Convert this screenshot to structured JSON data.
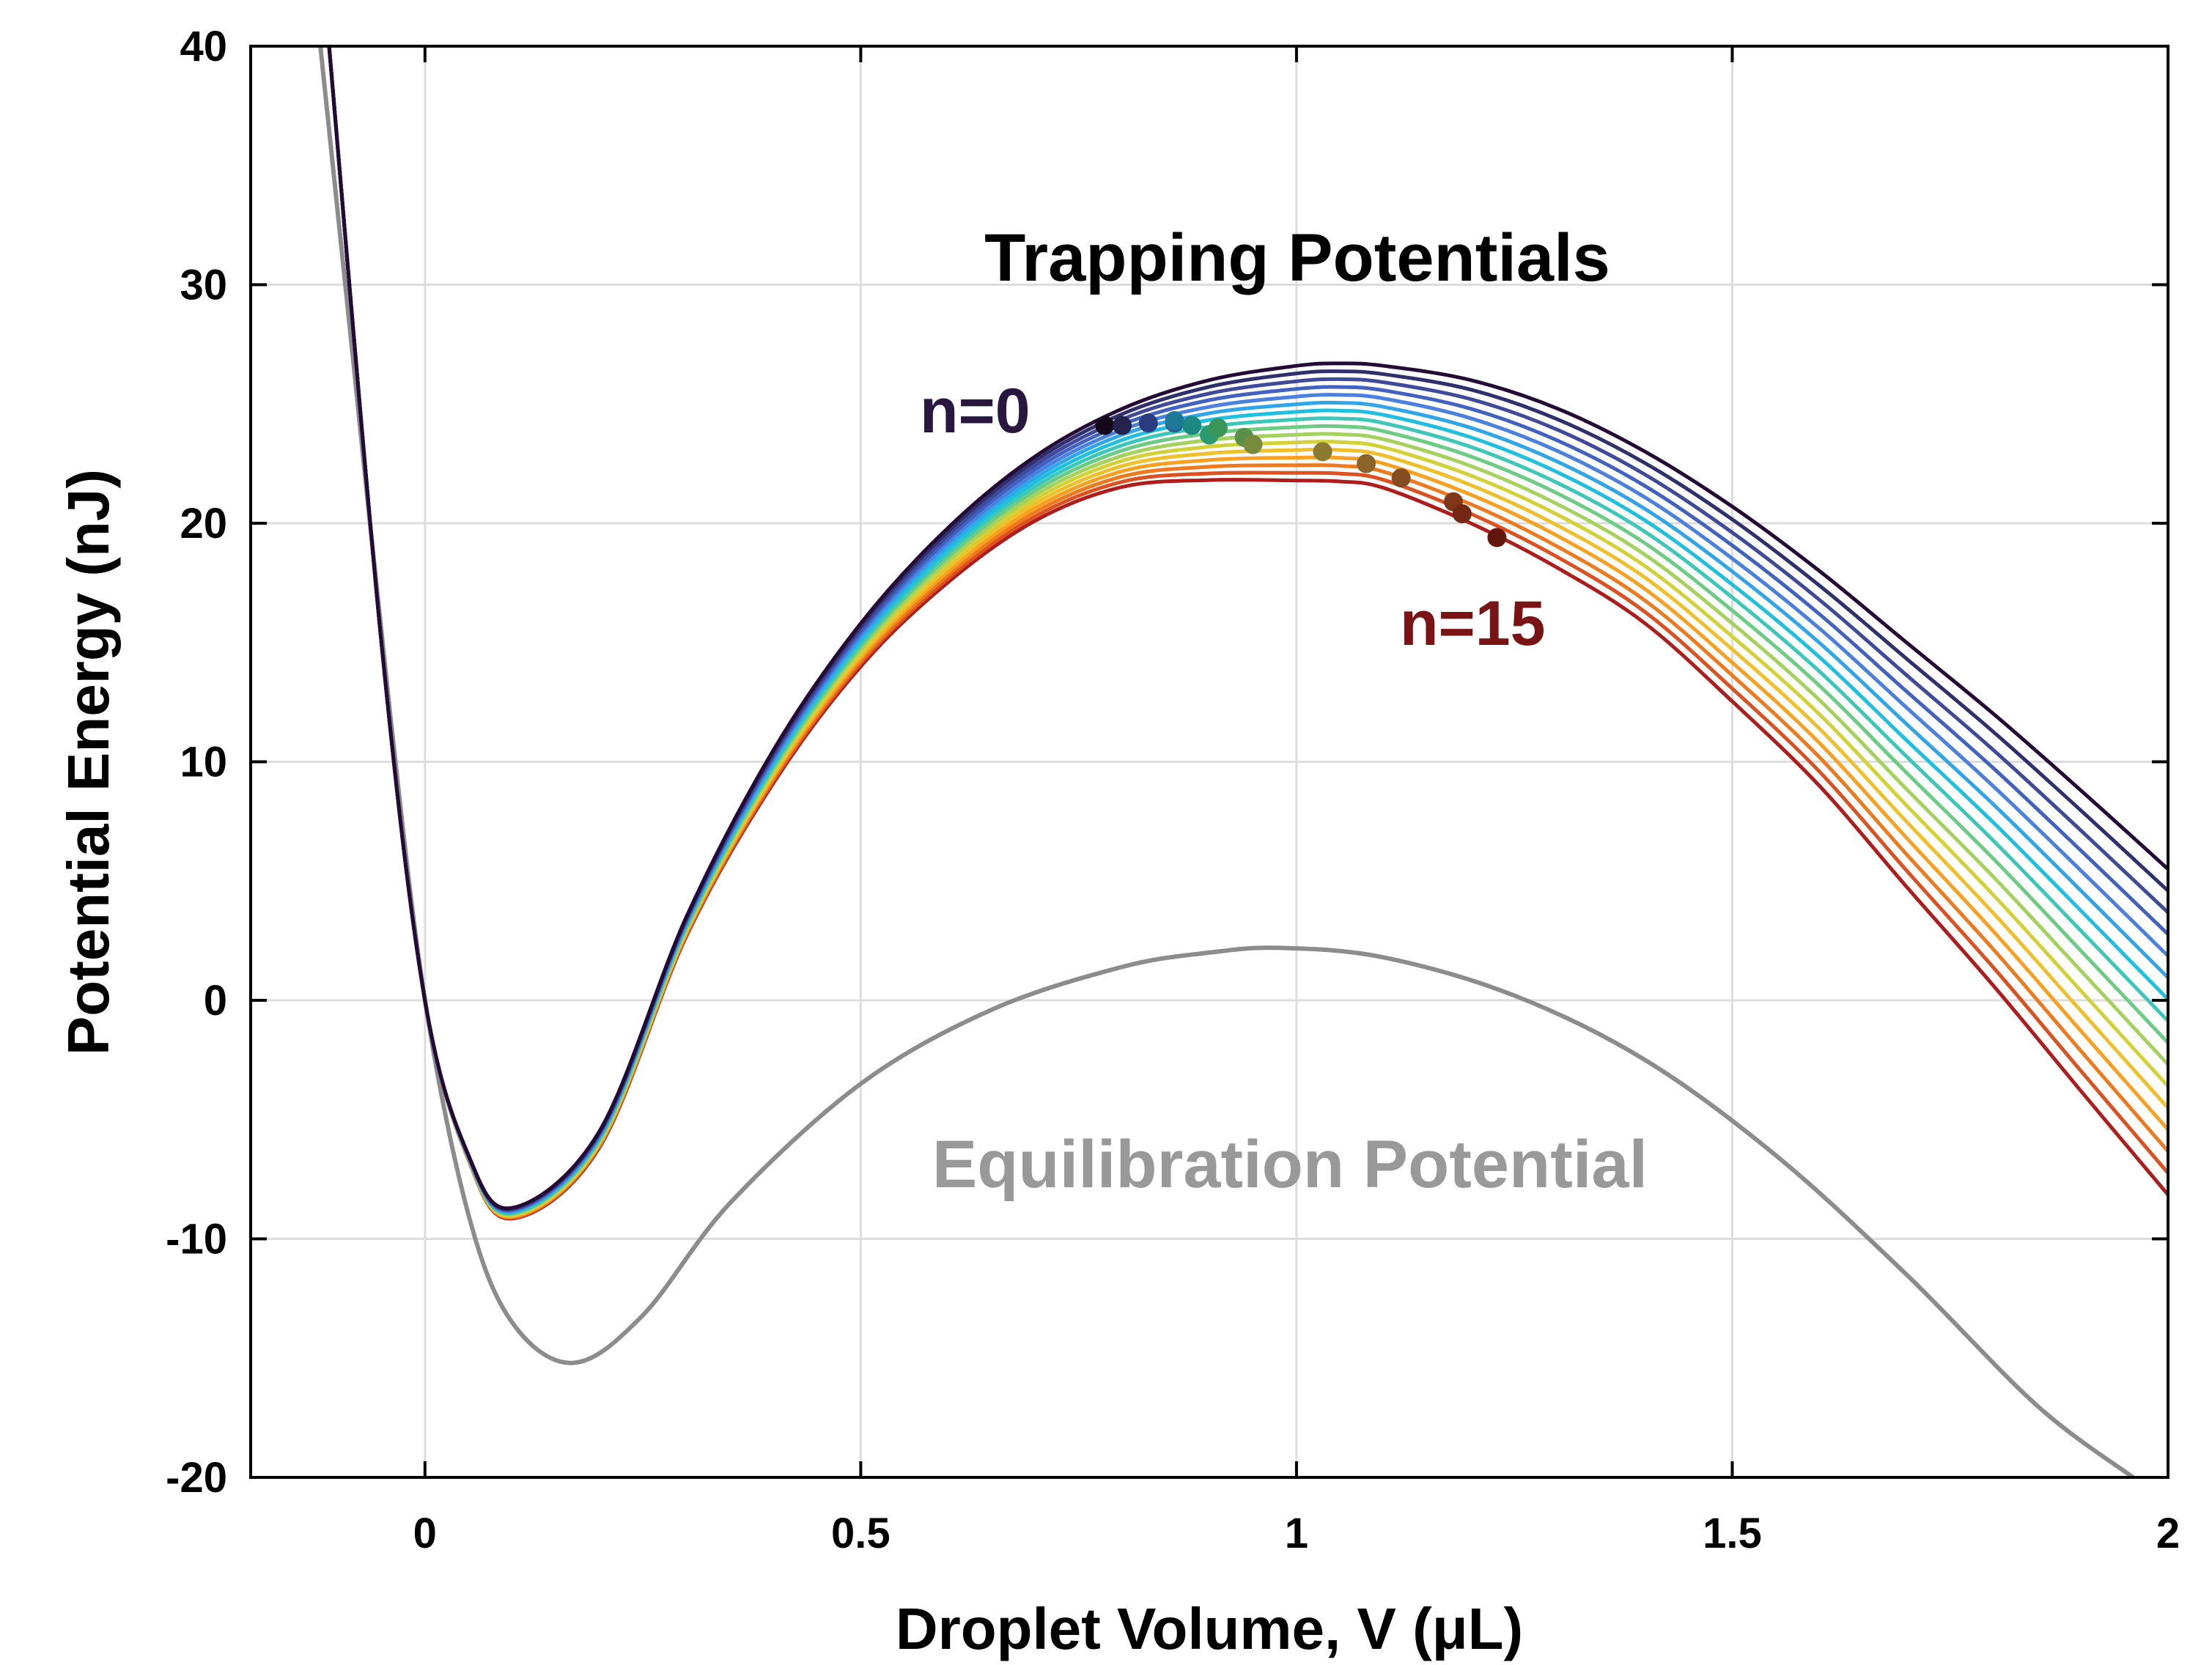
{
  "chart_data": {
    "type": "line",
    "title": "",
    "xlabel": "Droplet Volume, V (μL)",
    "ylabel": "Potential Energy (nJ)",
    "xlim": [
      -0.2,
      2.0
    ],
    "ylim": [
      -20,
      40
    ],
    "grid": true,
    "xticks": [
      0,
      0.5,
      1,
      1.5,
      2
    ],
    "xtick_labels": [
      "0",
      "0.5",
      "1",
      "1.5",
      "2"
    ],
    "yticks": [
      -20,
      -10,
      0,
      10,
      20,
      30,
      40
    ],
    "ytick_labels": [
      "-20",
      "-10",
      "0",
      "10",
      "20",
      "30",
      "40"
    ],
    "annotations": {
      "trapping": "Trapping Potentials",
      "n_first": "n=0",
      "n_last": "n=15",
      "equilibration": "Equilibration Potential"
    },
    "series": [
      {
        "name": "Equilibration Potential",
        "color": "#8c8c8c",
        "x": [
          -0.12,
          -0.08,
          -0.04,
          0.0,
          0.05,
          0.1,
          0.17,
          0.25,
          0.35,
          0.5,
          0.65,
          0.8,
          0.9,
          0.98,
          1.1,
          1.25,
          1.4,
          1.55,
          1.7,
          1.85,
          1.96
        ],
        "y": [
          40,
          26,
          12,
          0,
          -9,
          -13.5,
          -15.2,
          -13.2,
          -8.5,
          -3.5,
          -0.4,
          1.4,
          2.0,
          2.2,
          1.8,
          0.2,
          -2.5,
          -6.5,
          -11.5,
          -17,
          -20
        ]
      },
      {
        "name": "n=0",
        "color": "#240a35",
        "x": [
          -0.11,
          -0.05,
          0.0,
          0.05,
          0.1,
          0.2,
          0.3,
          0.4,
          0.5,
          0.6,
          0.7,
          0.8,
          0.9,
          1.0,
          1.05,
          1.1,
          1.2,
          1.3,
          1.4,
          1.5,
          1.6,
          1.7,
          1.8,
          1.9,
          2.0
        ],
        "y": [
          40,
          15,
          0,
          -6.5,
          -8.7,
          -5.5,
          3.5,
          10.5,
          15.8,
          19.8,
          22.8,
          24.8,
          26.0,
          26.6,
          26.7,
          26.6,
          26.0,
          24.8,
          23.0,
          20.7,
          18.0,
          15.0,
          12.0,
          8.8,
          5.5
        ]
      },
      {
        "name": "n=1",
        "color": "#30306e",
        "x": [
          -0.11,
          -0.05,
          0.0,
          0.05,
          0.1,
          0.2,
          0.3,
          0.4,
          0.5,
          0.6,
          0.7,
          0.8,
          0.9,
          1.0,
          1.05,
          1.1,
          1.2,
          1.3,
          1.4,
          1.5,
          1.6,
          1.7,
          1.8,
          1.9,
          2.0
        ],
        "y": [
          40,
          15,
          0,
          -6.51,
          -8.73,
          -5.54,
          3.45,
          10.41,
          15.68,
          19.65,
          22.62,
          24.58,
          25.72,
          26.28,
          26.37,
          26.25,
          25.6,
          24.35,
          22.52,
          20.16,
          17.39,
          14.32,
          11.24,
          7.96,
          4.59
        ]
      },
      {
        "name": "n=2",
        "color": "#3f4a9a",
        "x": [
          -0.11,
          -0.05,
          0.0,
          0.05,
          0.1,
          0.2,
          0.3,
          0.4,
          0.5,
          0.6,
          0.7,
          0.8,
          0.9,
          1.0,
          1.05,
          1.1,
          1.2,
          1.3,
          1.4,
          1.5,
          1.6,
          1.7,
          1.8,
          1.9,
          2.0
        ],
        "y": [
          40,
          15,
          0,
          -6.53,
          -8.76,
          -5.59,
          3.39,
          10.31,
          15.56,
          19.49,
          22.44,
          24.36,
          25.44,
          25.95,
          26.04,
          25.91,
          25.2,
          23.91,
          22.04,
          19.61,
          16.79,
          13.63,
          10.48,
          7.12,
          3.68
        ]
      },
      {
        "name": "n=3",
        "color": "#4262c2",
        "x": [
          -0.11,
          -0.05,
          0.0,
          0.05,
          0.1,
          0.2,
          0.3,
          0.4,
          0.5,
          0.6,
          0.7,
          0.8,
          0.9,
          1.0,
          1.05,
          1.1,
          1.2,
          1.3,
          1.4,
          1.5,
          1.6,
          1.7,
          1.8,
          1.9,
          2.0
        ],
        "y": [
          40,
          15,
          0,
          -6.54,
          -8.79,
          -5.63,
          3.34,
          10.22,
          15.44,
          19.34,
          22.26,
          24.14,
          25.16,
          25.63,
          25.71,
          25.57,
          24.8,
          23.46,
          21.56,
          19.07,
          16.19,
          12.95,
          9.72,
          6.28,
          2.77
        ]
      },
      {
        "name": "n=4",
        "color": "#4a80e0",
        "x": [
          -0.11,
          -0.05,
          0.0,
          0.05,
          0.1,
          0.2,
          0.3,
          0.4,
          0.5,
          0.6,
          0.7,
          0.8,
          0.9,
          1.0,
          1.05,
          1.1,
          1.2,
          1.3,
          1.4,
          1.5,
          1.6,
          1.7,
          1.8,
          1.9,
          2.0
        ],
        "y": [
          40,
          15,
          0,
          -6.55,
          -8.82,
          -5.68,
          3.29,
          10.13,
          15.32,
          19.19,
          22.08,
          23.92,
          24.88,
          25.31,
          25.38,
          25.23,
          24.4,
          23.02,
          21.08,
          18.52,
          15.59,
          12.27,
          8.96,
          5.44,
          1.86
        ]
      },
      {
        "name": "n=5",
        "color": "#2fa6ea",
        "x": [
          -0.11,
          -0.05,
          0.0,
          0.05,
          0.1,
          0.2,
          0.3,
          0.4,
          0.5,
          0.6,
          0.7,
          0.8,
          0.9,
          1.0,
          1.05,
          1.1,
          1.2,
          1.3,
          1.4,
          1.5,
          1.6,
          1.7,
          1.8,
          1.9,
          2.0
        ],
        "y": [
          40,
          15,
          0,
          -6.57,
          -8.85,
          -5.72,
          3.23,
          10.04,
          15.2,
          19.04,
          21.9,
          23.71,
          24.61,
          24.99,
          25.05,
          24.88,
          24.0,
          22.57,
          20.6,
          17.98,
          14.99,
          11.58,
          8.2,
          4.6,
          0.95
        ]
      },
      {
        "name": "n=6",
        "color": "#1ec0e0",
        "x": [
          -0.11,
          -0.05,
          0.0,
          0.05,
          0.1,
          0.2,
          0.3,
          0.4,
          0.5,
          0.6,
          0.7,
          0.8,
          0.9,
          1.0,
          1.05,
          1.1,
          1.2,
          1.3,
          1.4,
          1.5,
          1.6,
          1.7,
          1.8,
          1.9,
          2.0
        ],
        "y": [
          40,
          15,
          0,
          -6.58,
          -8.88,
          -5.77,
          3.18,
          9.95,
          15.08,
          18.89,
          21.72,
          23.49,
          24.33,
          24.67,
          24.72,
          24.54,
          23.6,
          22.13,
          20.12,
          17.43,
          14.39,
          10.9,
          7.44,
          3.76,
          0.04
        ]
      },
      {
        "name": "n=7",
        "color": "#3cc8b8",
        "x": [
          -0.11,
          -0.05,
          0.0,
          0.05,
          0.1,
          0.2,
          0.3,
          0.4,
          0.5,
          0.6,
          0.7,
          0.8,
          0.9,
          1.0,
          1.05,
          1.1,
          1.2,
          1.3,
          1.4,
          1.5,
          1.6,
          1.7,
          1.8,
          1.9,
          2.0
        ],
        "y": [
          40,
          15,
          0,
          -6.59,
          -8.91,
          -5.82,
          3.12,
          9.86,
          14.96,
          18.74,
          21.54,
          23.27,
          24.05,
          24.35,
          24.39,
          24.2,
          23.2,
          21.68,
          19.64,
          16.89,
          13.79,
          10.22,
          6.68,
          2.92,
          -0.87
        ]
      },
      {
        "name": "n=8",
        "color": "#6ccc84",
        "x": [
          -0.11,
          -0.05,
          0.0,
          0.05,
          0.1,
          0.2,
          0.3,
          0.4,
          0.5,
          0.6,
          0.7,
          0.8,
          0.9,
          1.0,
          1.05,
          1.1,
          1.2,
          1.3,
          1.4,
          1.5,
          1.6,
          1.7,
          1.8,
          1.9,
          2.0
        ],
        "y": [
          40,
          15,
          0,
          -6.61,
          -8.94,
          -5.86,
          3.07,
          9.76,
          14.84,
          18.58,
          21.36,
          23.05,
          23.77,
          24.03,
          24.06,
          23.86,
          22.8,
          21.24,
          19.16,
          16.34,
          13.19,
          9.54,
          5.92,
          2.08,
          -1.78
        ]
      },
      {
        "name": "n=9",
        "color": "#a4d25c",
        "x": [
          -0.11,
          -0.05,
          0.0,
          0.05,
          0.1,
          0.2,
          0.3,
          0.4,
          0.5,
          0.6,
          0.7,
          0.8,
          0.9,
          1.0,
          1.05,
          1.1,
          1.2,
          1.3,
          1.4,
          1.5,
          1.6,
          1.7,
          1.8,
          1.9,
          2.0
        ],
        "y": [
          40,
          15,
          0,
          -6.62,
          -8.97,
          -5.91,
          3.01,
          9.67,
          14.72,
          18.43,
          21.18,
          22.83,
          23.49,
          23.71,
          23.73,
          23.52,
          22.4,
          20.79,
          18.68,
          15.8,
          12.59,
          8.85,
          5.16,
          1.24,
          -2.69
        ]
      },
      {
        "name": "n=10",
        "color": "#d2d236",
        "x": [
          -0.11,
          -0.05,
          0.0,
          0.05,
          0.1,
          0.2,
          0.3,
          0.4,
          0.5,
          0.6,
          0.7,
          0.8,
          0.9,
          1.0,
          1.05,
          1.1,
          1.2,
          1.3,
          1.4,
          1.5,
          1.6,
          1.7,
          1.8,
          1.9,
          2.0
        ],
        "y": [
          40,
          15,
          0,
          -6.63,
          -9.0,
          -5.95,
          2.96,
          9.58,
          14.6,
          18.28,
          21.0,
          22.62,
          23.21,
          23.39,
          23.4,
          23.18,
          22.0,
          20.35,
          18.2,
          15.25,
          11.99,
          8.17,
          4.4,
          0.4,
          -3.6
        ]
      },
      {
        "name": "n=11",
        "color": "#f0c02a",
        "x": [
          -0.11,
          -0.05,
          0.0,
          0.05,
          0.1,
          0.2,
          0.3,
          0.4,
          0.5,
          0.6,
          0.7,
          0.8,
          0.9,
          1.0,
          1.05,
          1.1,
          1.2,
          1.3,
          1.4,
          1.5,
          1.6,
          1.7,
          1.8,
          1.9,
          2.0
        ],
        "y": [
          40,
          15,
          0,
          -6.65,
          -9.03,
          -6.0,
          2.91,
          9.49,
          14.48,
          18.13,
          20.82,
          22.4,
          22.93,
          23.07,
          23.07,
          22.84,
          21.6,
          19.9,
          17.72,
          14.71,
          11.39,
          7.49,
          3.64,
          -0.44,
          -4.51
        ]
      },
      {
        "name": "n=12",
        "color": "#f8a020",
        "x": [
          -0.11,
          -0.05,
          0.0,
          0.05,
          0.1,
          0.2,
          0.3,
          0.4,
          0.5,
          0.6,
          0.7,
          0.8,
          0.9,
          1.0,
          1.05,
          1.1,
          1.2,
          1.3,
          1.4,
          1.5,
          1.6,
          1.7,
          1.8,
          1.9,
          2.0
        ],
        "y": [
          40,
          15,
          0,
          -6.66,
          -9.06,
          -6.04,
          2.85,
          9.4,
          14.36,
          17.98,
          20.64,
          22.18,
          22.65,
          22.75,
          22.74,
          22.5,
          21.2,
          19.46,
          17.24,
          14.16,
          10.79,
          6.81,
          2.88,
          -1.28,
          -5.42
        ]
      },
      {
        "name": "n=13",
        "color": "#ef7a1e",
        "x": [
          -0.11,
          -0.05,
          0.0,
          0.05,
          0.1,
          0.2,
          0.3,
          0.4,
          0.5,
          0.6,
          0.7,
          0.8,
          0.9,
          1.0,
          1.05,
          1.1,
          1.2,
          1.3,
          1.4,
          1.5,
          1.6,
          1.7,
          1.8,
          1.9,
          2.0
        ],
        "y": [
          40,
          15,
          0,
          -6.67,
          -9.09,
          -6.09,
          2.8,
          9.31,
          14.24,
          17.83,
          20.46,
          21.96,
          22.37,
          22.43,
          22.41,
          22.16,
          20.8,
          19.01,
          16.76,
          13.62,
          10.19,
          6.12,
          2.12,
          -2.12,
          -6.33
        ]
      },
      {
        "name": "n=14",
        "color": "#dd5020",
        "x": [
          -0.11,
          -0.05,
          0.0,
          0.05,
          0.1,
          0.2,
          0.3,
          0.4,
          0.5,
          0.6,
          0.7,
          0.8,
          0.9,
          1.0,
          1.05,
          1.1,
          1.2,
          1.3,
          1.4,
          1.5,
          1.6,
          1.7,
          1.8,
          1.9,
          2.0
        ],
        "y": [
          40,
          15,
          0,
          -6.69,
          -9.12,
          -6.13,
          2.74,
          9.21,
          14.12,
          17.67,
          20.28,
          21.74,
          22.09,
          22.11,
          22.08,
          21.82,
          20.4,
          18.57,
          16.28,
          13.07,
          9.59,
          5.44,
          1.36,
          -2.96,
          -7.24
        ]
      },
      {
        "name": "n=15",
        "color": "#b01c1c",
        "x": [
          -0.11,
          -0.05,
          0.0,
          0.05,
          0.1,
          0.2,
          0.3,
          0.4,
          0.5,
          0.6,
          0.7,
          0.8,
          0.9,
          1.0,
          1.05,
          1.1,
          1.2,
          1.3,
          1.4,
          1.5,
          1.6,
          1.7,
          1.8,
          1.9,
          2.0
        ],
        "y": [
          40,
          15,
          0,
          -6.7,
          -9.15,
          -6.18,
          2.69,
          9.12,
          14.0,
          17.52,
          20.1,
          21.52,
          21.81,
          21.79,
          21.75,
          21.48,
          20.0,
          18.12,
          15.8,
          12.53,
          8.99,
          4.76,
          0.6,
          -3.8,
          -8.15
        ]
      }
    ],
    "points": {
      "name": "Markers (n=0 to n=15)",
      "x": [
        0.78,
        0.8,
        0.83,
        0.86,
        0.86,
        0.88,
        0.9,
        0.91,
        0.94,
        0.95,
        1.03,
        1.08,
        1.12,
        1.18,
        1.19,
        1.23
      ],
      "y": [
        24.1,
        24.1,
        24.2,
        24.2,
        24.3,
        24.1,
        23.7,
        24.0,
        23.6,
        23.3,
        23.0,
        22.5,
        21.9,
        20.9,
        20.4,
        19.4
      ],
      "colors": [
        "#140818",
        "#26224e",
        "#2c3c80",
        "#2a5c96",
        "#1e7896",
        "#1c8a82",
        "#2a9a70",
        "#3a9658",
        "#5a9048",
        "#788a3c",
        "#8a7a30",
        "#8a6428",
        "#844c20",
        "#7e3818",
        "#742812",
        "#62160c"
      ]
    }
  }
}
